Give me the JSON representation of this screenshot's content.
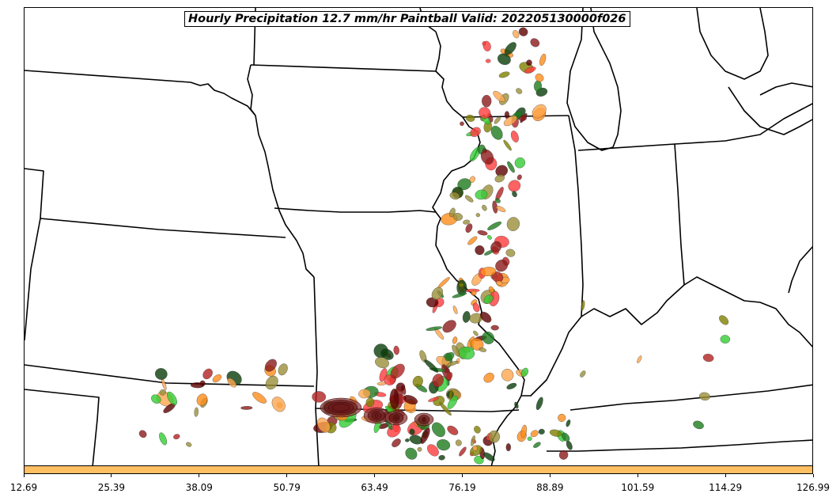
{
  "title": "Hourly Precipitation 12.7 mm/hr Paintball Valid: 202205130000f026",
  "colorbar": {
    "color": "#ffbf63",
    "ticks": [
      "12.69",
      "25.39",
      "38.09",
      "50.79",
      "63.49",
      "76.19",
      "88.89",
      "101.59",
      "114.29",
      "126.99"
    ]
  },
  "member_colors": [
    "#8b1a1a",
    "#b22222",
    "#ff3b3b",
    "#ff8c1a",
    "#ffa64d",
    "#808000",
    "#9a8f3a",
    "#1e7b1e",
    "#33cc33",
    "#0a3d0a",
    "#5c0000"
  ]
}
